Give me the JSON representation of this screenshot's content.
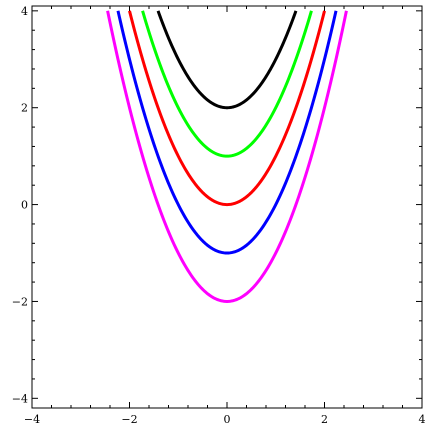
{
  "chart_data": {
    "type": "line",
    "title": "",
    "xlabel": "",
    "ylabel": "",
    "xlim": [
      -4,
      4
    ],
    "ylim": [
      -4.2,
      4.1
    ],
    "x_ticks": [
      -4,
      -2,
      0,
      2,
      4
    ],
    "y_ticks": [
      -4,
      -2,
      0,
      2,
      4
    ],
    "x_tick_labels": [
      "−4",
      "−2",
      "0",
      "2",
      "4"
    ],
    "y_tick_labels": [
      "−4",
      "−2",
      "0",
      "2",
      "4"
    ],
    "y_max_drawn": 4,
    "grid": false,
    "frame": true,
    "legend": "none",
    "series": [
      {
        "function": "y = x^2 + 2",
        "offset": 2,
        "color": "#000000"
      },
      {
        "function": "y = x^2 + 1",
        "offset": 1,
        "color": "#00ff00"
      },
      {
        "function": "y = x^2",
        "offset": 0,
        "color": "#ff0000"
      },
      {
        "function": "y = x^2 - 1",
        "offset": -1,
        "color": "#0000ff"
      },
      {
        "function": "y = x^2 - 2",
        "offset": -2,
        "color": "#ff00ff"
      }
    ]
  }
}
